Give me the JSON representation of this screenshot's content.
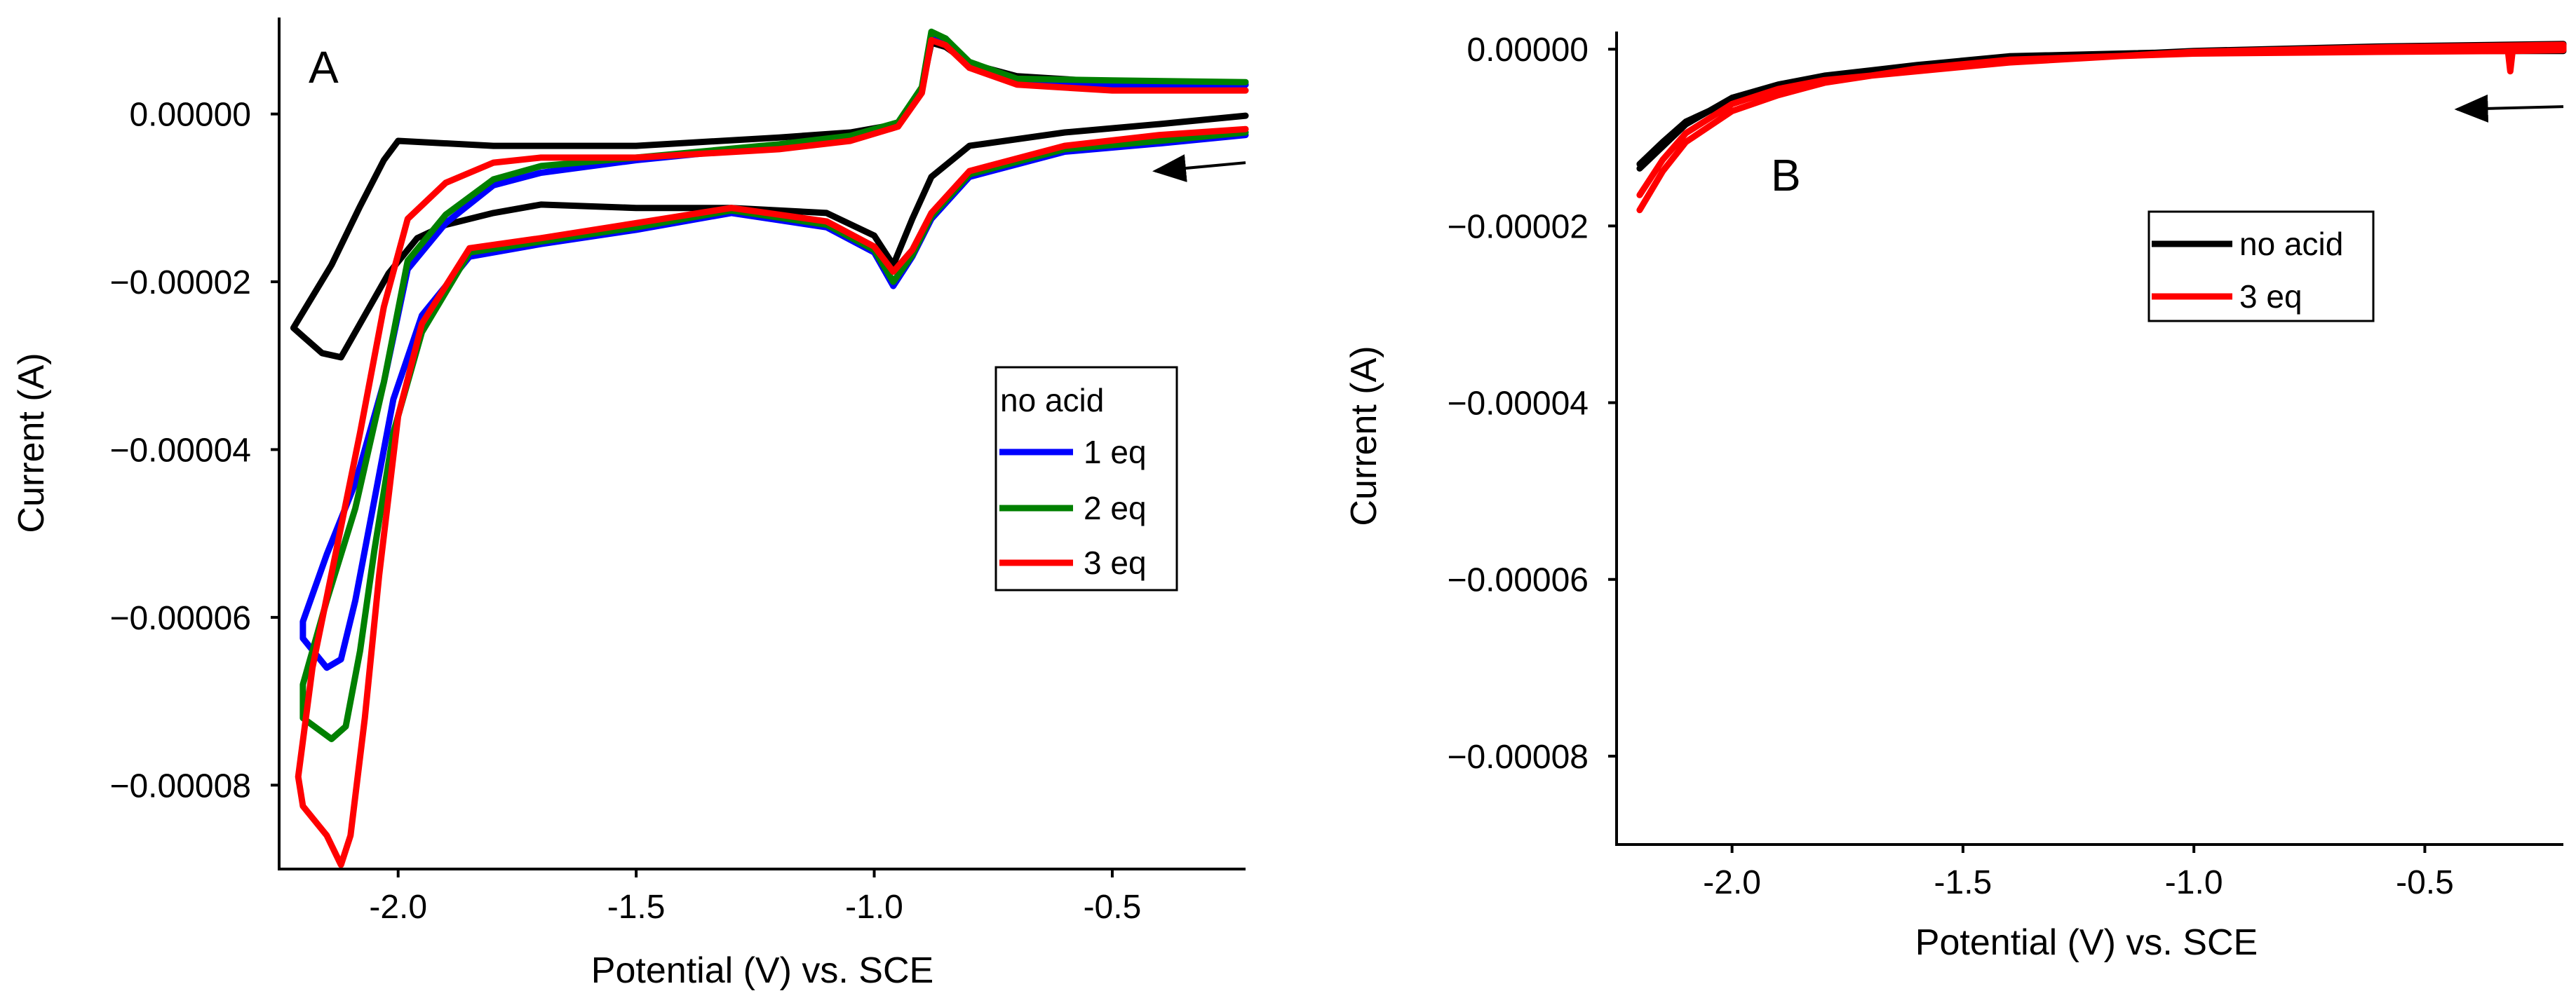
{
  "chart_data": [
    {
      "type": "line",
      "panel": "A",
      "xlabel": "Potential (V) vs. SCE",
      "ylabel": "Current (A)",
      "xlim": [
        -2.25,
        -0.22
      ],
      "ylim": [
        -9e-05,
        1.15e-05
      ],
      "xticks": [
        -2.0,
        -1.5,
        -1.0,
        -0.5
      ],
      "xtick_labels": [
        "-2.0",
        "-1.5",
        "-1.0",
        "-0.5"
      ],
      "yticks": [
        0.0,
        -2e-05,
        -4e-05,
        -6e-05,
        -8e-05
      ],
      "ytick_labels": [
        "0.00000",
        "−0.00002",
        "−0.00004",
        "−0.00006",
        "−0.00008"
      ],
      "legend_position": "right",
      "arrow": {
        "from": [
          -0.22,
          -5.8e-06
        ],
        "to": [
          -0.41,
          -6.8e-06
        ]
      },
      "series": [
        {
          "name": "no acid",
          "color": "#000000",
          "x": [
            -0.22,
            -0.4,
            -0.6,
            -0.8,
            -0.88,
            -0.92,
            -0.96,
            -1.0,
            -1.1,
            -1.3,
            -1.5,
            -1.7,
            -1.8,
            -1.9,
            -1.96,
            -2.02,
            -2.08,
            -2.12,
            -2.16,
            -2.2,
            -2.22,
            -2.14,
            -2.08,
            -2.03,
            -2.0,
            -1.8,
            -1.5,
            -1.2,
            -1.05,
            -0.95,
            -0.9,
            -0.88,
            -0.85,
            -0.8,
            -0.7,
            -0.5,
            -0.22
          ],
          "y": [
            -2e-07,
            -1.2e-06,
            -2.2e-06,
            -3.8e-06,
            -7.5e-06,
            -1.25e-05,
            -1.8e-05,
            -1.45e-05,
            -1.18e-05,
            -1.12e-05,
            -1.12e-05,
            -1.08e-05,
            -1.18e-05,
            -1.32e-05,
            -1.48e-05,
            -1.9e-05,
            -2.5e-05,
            -2.9e-05,
            -2.85e-05,
            -2.65e-05,
            -2.55e-05,
            -1.8e-05,
            -1.1e-05,
            -5.5e-06,
            -3.2e-06,
            -3.8e-06,
            -3.8e-06,
            -2.8e-06,
            -2.2e-06,
            -1.2e-06,
            3e-06,
            8.5e-06,
            8e-06,
            6e-06,
            4.5e-06,
            3.8e-06,
            3.5e-06
          ]
        },
        {
          "name": "1 eq",
          "color": "#0000ff",
          "x": [
            -0.22,
            -0.4,
            -0.6,
            -0.8,
            -0.88,
            -0.92,
            -0.96,
            -1.0,
            -1.1,
            -1.3,
            -1.5,
            -1.7,
            -1.85,
            -1.95,
            -2.01,
            -2.05,
            -2.09,
            -2.12,
            -2.15,
            -2.2,
            -2.2,
            -2.15,
            -2.09,
            -2.03,
            -1.98,
            -1.9,
            -1.8,
            -1.7,
            -1.5,
            -1.2,
            -1.05,
            -0.95,
            -0.9,
            -0.88,
            -0.85,
            -0.8,
            -0.7,
            -0.5,
            -0.22
          ],
          "y": [
            -2.5e-06,
            -3.5e-06,
            -4.5e-06,
            -7.5e-06,
            -1.25e-05,
            -1.7e-05,
            -2.05e-05,
            -1.65e-05,
            -1.35e-05,
            -1.18e-05,
            -1.38e-05,
            -1.55e-05,
            -1.7e-05,
            -2.4e-05,
            -3.4e-05,
            -4.6e-05,
            -5.8e-05,
            -6.5e-05,
            -6.6e-05,
            -6.25e-05,
            -6.05e-05,
            -5.25e-05,
            -4.4e-05,
            -3.2e-05,
            -1.85e-05,
            -1.3e-05,
            -8.5e-06,
            -7e-06,
            -5.5e-06,
            -3.8e-06,
            -2.8e-06,
            -1.2e-06,
            3e-06,
            9.5e-06,
            9e-06,
            6e-06,
            4e-06,
            3.5e-06,
            3.5e-06
          ]
        },
        {
          "name": "2 eq",
          "color": "#008000",
          "x": [
            -0.22,
            -0.4,
            -0.6,
            -0.8,
            -0.88,
            -0.92,
            -0.96,
            -1.0,
            -1.1,
            -1.3,
            -1.5,
            -1.7,
            -1.85,
            -1.95,
            -2.01,
            -2.05,
            -2.08,
            -2.11,
            -2.14,
            -2.2,
            -2.2,
            -2.15,
            -2.09,
            -2.03,
            -1.98,
            -1.9,
            -1.8,
            -1.7,
            -1.5,
            -1.2,
            -1.05,
            -0.95,
            -0.9,
            -0.88,
            -0.85,
            -0.8,
            -0.7,
            -0.5,
            -0.22
          ],
          "y": [
            -2.2e-06,
            -3.2e-06,
            -4.2e-06,
            -7.2e-06,
            -1.22e-05,
            -1.68e-05,
            -2e-05,
            -1.62e-05,
            -1.32e-05,
            -1.15e-05,
            -1.35e-05,
            -1.52e-05,
            -1.65e-05,
            -2.6e-05,
            -3.8e-05,
            -5.2e-05,
            -6.4e-05,
            -7.3e-05,
            -7.45e-05,
            -7.2e-05,
            -6.8e-05,
            -5.8e-05,
            -4.7e-05,
            -3.2e-05,
            -1.75e-05,
            -1.2e-05,
            -7.8e-06,
            -6.2e-06,
            -5.2e-06,
            -3.6e-06,
            -2.6e-06,
            -1e-06,
            3.2e-06,
            9.8e-06,
            9e-06,
            6.2e-06,
            4.2e-06,
            4e-06,
            3.8e-06
          ]
        },
        {
          "name": "3 eq",
          "color": "#ff0000",
          "x": [
            -0.22,
            -0.4,
            -0.6,
            -0.8,
            -0.88,
            -0.92,
            -0.96,
            -1.0,
            -1.1,
            -1.3,
            -1.5,
            -1.7,
            -1.85,
            -1.95,
            -2.0,
            -2.04,
            -2.07,
            -2.1,
            -2.12,
            -2.15,
            -2.2,
            -2.21,
            -2.18,
            -2.13,
            -2.08,
            -2.03,
            -1.98,
            -1.9,
            -1.8,
            -1.7,
            -1.5,
            -1.2,
            -1.05,
            -0.95,
            -0.9,
            -0.88,
            -0.85,
            -0.8,
            -0.7,
            -0.5,
            -0.22
          ],
          "y": [
            -1.8e-06,
            -2.5e-06,
            -3.8e-06,
            -6.8e-06,
            -1.18e-05,
            -1.62e-05,
            -1.88e-05,
            -1.58e-05,
            -1.28e-05,
            -1.12e-05,
            -1.3e-05,
            -1.48e-05,
            -1.6e-05,
            -2.5e-05,
            -3.6e-05,
            -5.5e-05,
            -7.2e-05,
            -8.6e-05,
            -8.95e-05,
            -8.6e-05,
            -8.25e-05,
            -7.9e-05,
            -6.6e-05,
            -5.2e-05,
            -3.8e-05,
            -2.3e-05,
            -1.25e-05,
            -8.2e-06,
            -5.8e-06,
            -5.2e-06,
            -5.2e-06,
            -4.2e-06,
            -3.2e-06,
            -1.5e-06,
            2.5e-06,
            8.8e-06,
            8.2e-06,
            5.5e-06,
            3.5e-06,
            2.8e-06,
            2.8e-06
          ]
        }
      ],
      "legend": [
        {
          "label": "no acid",
          "color": ""
        },
        {
          "label": "1 eq",
          "color": "#0000ff"
        },
        {
          "label": "2 eq",
          "color": "#008000"
        },
        {
          "label": "3 eq",
          "color": "#ff0000"
        }
      ]
    },
    {
      "type": "line",
      "panel": "B",
      "xlabel": "Potential (V) vs. SCE",
      "ylabel": "Current (A)",
      "xlim": [
        -2.25,
        -0.2
      ],
      "ylim": [
        -9e-05,
        2e-06
      ],
      "xticks": [
        -2.0,
        -1.5,
        -1.0,
        -0.5
      ],
      "xtick_labels": [
        "-2.0",
        "-1.5",
        "-1.0",
        "-0.5"
      ],
      "yticks": [
        0.0,
        -2e-05,
        -4e-05,
        -6e-05,
        -8e-05
      ],
      "ytick_labels": [
        "0.00000",
        "−0.00002",
        "−0.00004",
        "−0.00006",
        "−0.00008"
      ],
      "legend_position": "upper-center",
      "arrow": {
        "from": [
          -0.2,
          -6.5e-06
        ],
        "to": [
          -0.43,
          -6.8e-06
        ]
      },
      "series": [
        {
          "name": "no acid",
          "color": "#000000",
          "x": [
            -2.2,
            -2.15,
            -2.1,
            -2.0,
            -1.9,
            -1.8,
            -1.6,
            -1.4,
            -1.0,
            -0.6,
            -0.2,
            -0.2,
            -0.6,
            -1.0,
            -1.4,
            -1.6,
            -1.8,
            -1.9,
            -2.0,
            -2.1,
            -2.15,
            -2.2
          ],
          "y": [
            -1.35e-05,
            -1.1e-05,
            -8.5e-06,
            -5.5e-06,
            -4e-06,
            -3e-06,
            -1.8e-06,
            -8e-07,
            -3e-07,
            -2e-07,
            -2e-07,
            6e-07,
            3e-07,
            -2e-07,
            -1.2e-06,
            -2.2e-06,
            -3.2e-06,
            -4.2e-06,
            -5.8e-06,
            -8.2e-06,
            -1.05e-05,
            -1.3e-05
          ]
        },
        {
          "name": "3 eq",
          "color": "#ff0000",
          "x": [
            -2.2,
            -2.15,
            -2.1,
            -2.0,
            -1.9,
            -1.8,
            -1.6,
            -1.4,
            -1.0,
            -0.6,
            -0.32,
            -0.315,
            -0.31,
            -0.2,
            -0.2,
            -0.6,
            -1.0,
            -1.4,
            -1.6,
            -1.8,
            -1.9,
            -2.0,
            -2.1,
            -2.15,
            -2.2
          ],
          "y": [
            -1.82e-05,
            -1.38e-05,
            -1.05e-05,
            -7e-06,
            -5.2e-06,
            -3.8e-06,
            -2.2e-06,
            -1.2e-06,
            -5e-07,
            -3e-07,
            -2e-07,
            -2.5e-06,
            -2e-07,
            -1e-07,
            5e-07,
            2e-07,
            -3e-07,
            -1.5e-06,
            -2.5e-06,
            -3.5e-06,
            -4.5e-06,
            -6.2e-06,
            -9.5e-06,
            -1.25e-05,
            -1.65e-05
          ]
        }
      ],
      "legend": [
        {
          "label": "no acid",
          "color": "#000000"
        },
        {
          "label": "3 eq",
          "color": "#ff0000"
        }
      ]
    }
  ]
}
